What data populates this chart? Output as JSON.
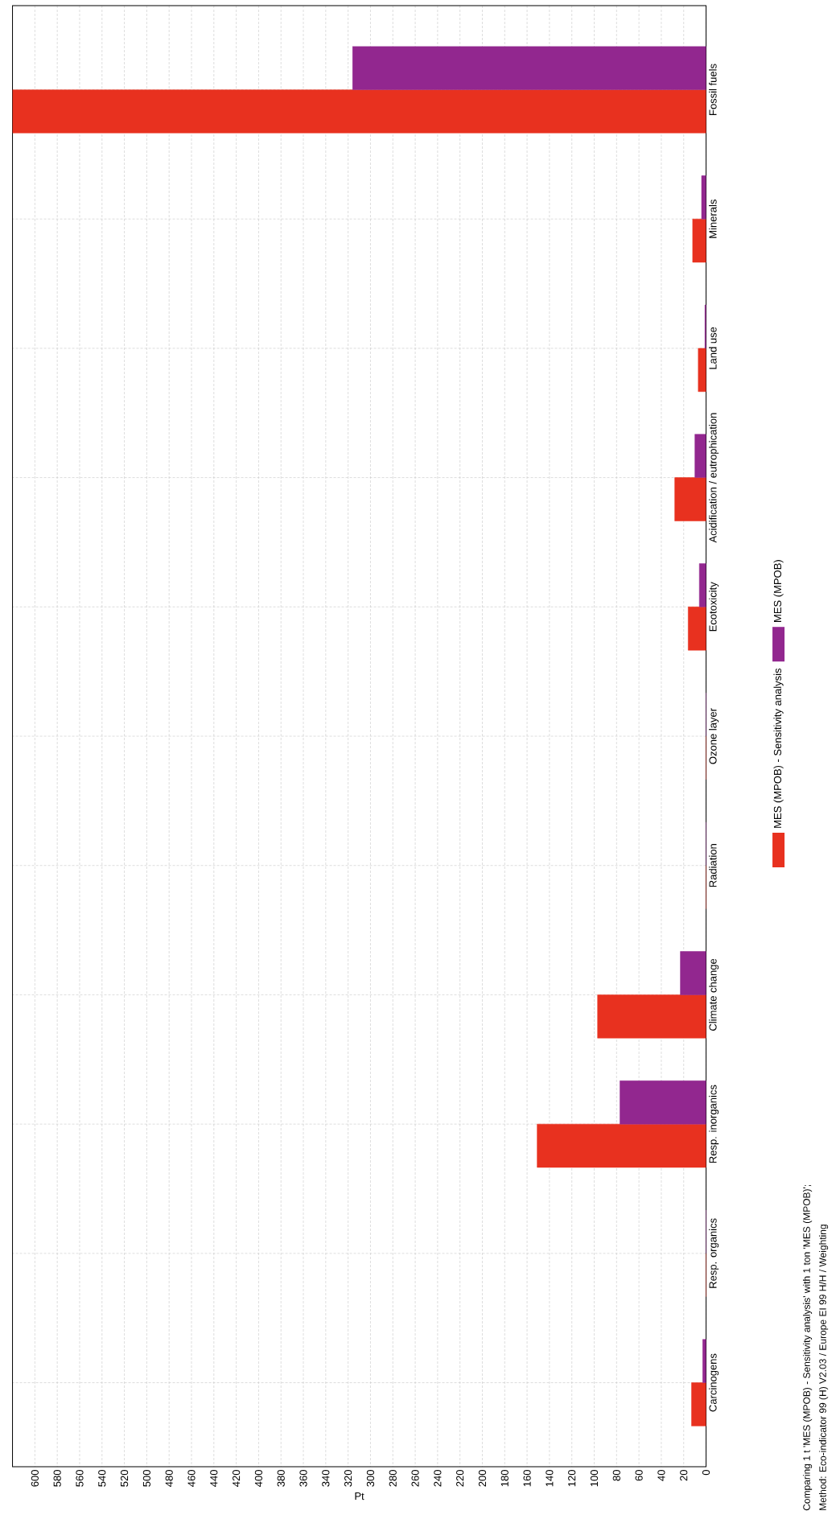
{
  "chart_data": {
    "type": "bar",
    "orientation": "horizontal",
    "categories": [
      "Fossil fuels",
      "Minerals",
      "Land use",
      "Acidification / eutrophication",
      "Ecotoxicity",
      "Ozone layer",
      "Radiation",
      "Climate change",
      "Resp. inorganics",
      "Resp. organics",
      "Carcinogens"
    ],
    "series": [
      {
        "name": "MES (MPOB) - Sensitivity analysis",
        "color": "#e8311f",
        "values": [
          620,
          12,
          7,
          28,
          16,
          0,
          0,
          97,
          151,
          0,
          13
        ]
      },
      {
        "name": "MES (MPOB)",
        "color": "#92278f",
        "values": [
          316,
          4,
          1,
          10,
          6,
          0,
          0,
          23,
          77,
          0,
          3
        ]
      }
    ],
    "xlabel": "Pt",
    "xlim": [
      620,
      0
    ],
    "xticks": [
      0,
      20,
      40,
      60,
      80,
      100,
      120,
      140,
      160,
      180,
      200,
      220,
      240,
      260,
      280,
      300,
      320,
      340,
      360,
      380,
      400,
      420,
      440,
      460,
      480,
      500,
      520,
      540,
      560,
      580,
      600
    ],
    "grid": true,
    "legend": "right",
    "annotations": [
      "Comparing 1 t 'MES (MPOB) - Sensitivity analysis' with 1 ton 'MES (MPOB)';",
      "Method: Eco-indicator 99 (H) V2.03 / Europe EI 99 H/H / Weighting"
    ]
  }
}
